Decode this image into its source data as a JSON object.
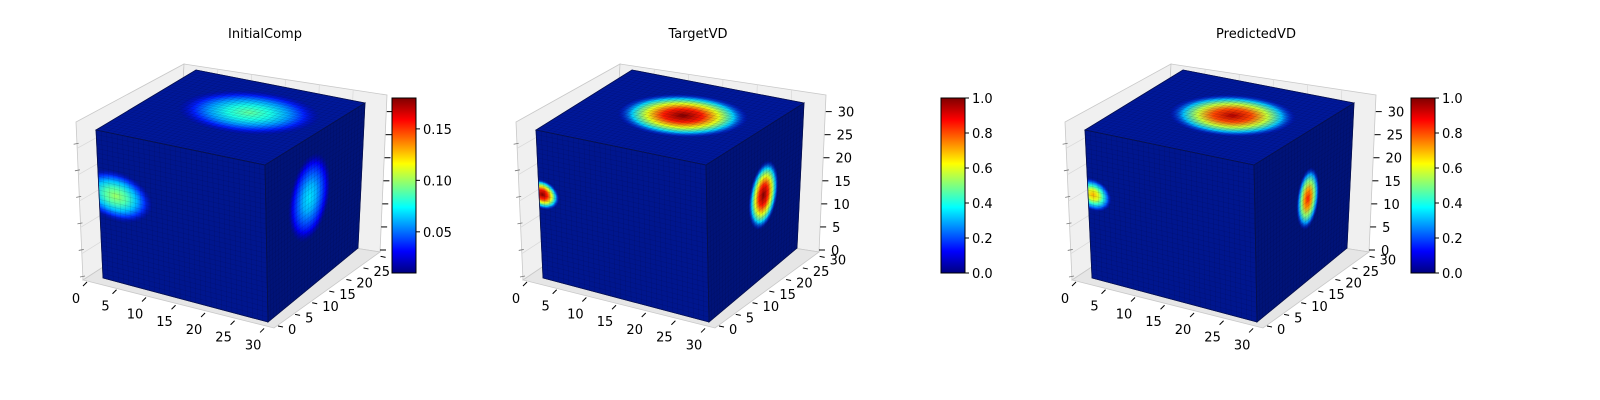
{
  "colors": {
    "colormap": [
      "#00007f",
      "#0000ff",
      "#007fff",
      "#00ffff",
      "#7fff7f",
      "#ffff00",
      "#ff7f00",
      "#ff0000",
      "#7f0000"
    ],
    "cube_base": "#00189a",
    "pane": "#f0f0f0",
    "grid": "#d8d8d8"
  },
  "chart_data": [
    {
      "type": "voxel3d",
      "title": "InitialComp",
      "x_ticks": [
        "0",
        "5",
        "10",
        "15",
        "20",
        "25",
        "30"
      ],
      "y_ticks": [
        "0",
        "5",
        "10",
        "15",
        "20",
        "25",
        "30"
      ],
      "z_ticks": [],
      "colorbar": {
        "min": 0.01,
        "max": 0.18,
        "ticks": [
          0.05,
          0.1,
          0.15
        ],
        "labels": [
          "0.05",
          "0.10",
          "0.15"
        ]
      },
      "blobs": [
        {
          "face": "top",
          "u": 0.55,
          "v": 0.6,
          "ru": 0.38,
          "rv": 0.3,
          "value": 0.09
        },
        {
          "face": "front",
          "u": 0.1,
          "v": 0.42,
          "ru": 0.22,
          "rv": 0.17,
          "value": 0.1
        },
        {
          "face": "side",
          "u": 0.45,
          "v": 0.4,
          "ru": 0.22,
          "rv": 0.28,
          "value": 0.07
        }
      ]
    },
    {
      "type": "voxel3d",
      "title": "TargetVD",
      "x_ticks": [
        "0",
        "5",
        "10",
        "15",
        "20",
        "25",
        "30"
      ],
      "y_ticks": [
        "0",
        "5",
        "10",
        "15",
        "20",
        "25",
        "30"
      ],
      "z_ticks": [
        "0",
        "5",
        "10",
        "15",
        "20",
        "25",
        "30"
      ],
      "colorbar": {
        "min": 0.0,
        "max": 1.0,
        "ticks": [
          0,
          0.2,
          0.4,
          0.6,
          0.8,
          1.0
        ],
        "labels": [
          "0.0",
          "0.2",
          "0.4",
          "0.6",
          "0.8",
          "1.0"
        ]
      },
      "blobs": [
        {
          "face": "top",
          "u": 0.55,
          "v": 0.55,
          "ru": 0.34,
          "rv": 0.3,
          "value": 1.0
        },
        {
          "face": "front",
          "u": 0.02,
          "v": 0.43,
          "ru": 0.1,
          "rv": 0.1,
          "value": 1.0
        },
        {
          "face": "side",
          "u": 0.6,
          "v": 0.45,
          "ru": 0.16,
          "rv": 0.22,
          "value": 1.0
        }
      ]
    },
    {
      "type": "voxel3d",
      "title": "PredictedVD",
      "x_ticks": [
        "0",
        "5",
        "10",
        "15",
        "20",
        "25",
        "30"
      ],
      "y_ticks": [
        "0",
        "5",
        "10",
        "15",
        "20",
        "25",
        "30"
      ],
      "z_ticks": [
        "0",
        "5",
        "10",
        "15",
        "20",
        "25",
        "30"
      ],
      "colorbar": {
        "min": 0.0,
        "max": 1.0,
        "ticks": [
          0,
          0.2,
          0.4,
          0.6,
          0.8,
          1.0
        ],
        "labels": [
          "0.0",
          "0.2",
          "0.4",
          "0.6",
          "0.8",
          "1.0"
        ]
      },
      "blobs": [
        {
          "face": "top",
          "u": 0.55,
          "v": 0.55,
          "ru": 0.33,
          "rv": 0.29,
          "value": 0.95
        },
        {
          "face": "front",
          "u": 0.03,
          "v": 0.43,
          "ru": 0.11,
          "rv": 0.11,
          "value": 0.7
        },
        {
          "face": "side",
          "u": 0.55,
          "v": 0.45,
          "ru": 0.12,
          "rv": 0.2,
          "value": 0.85
        }
      ]
    }
  ]
}
